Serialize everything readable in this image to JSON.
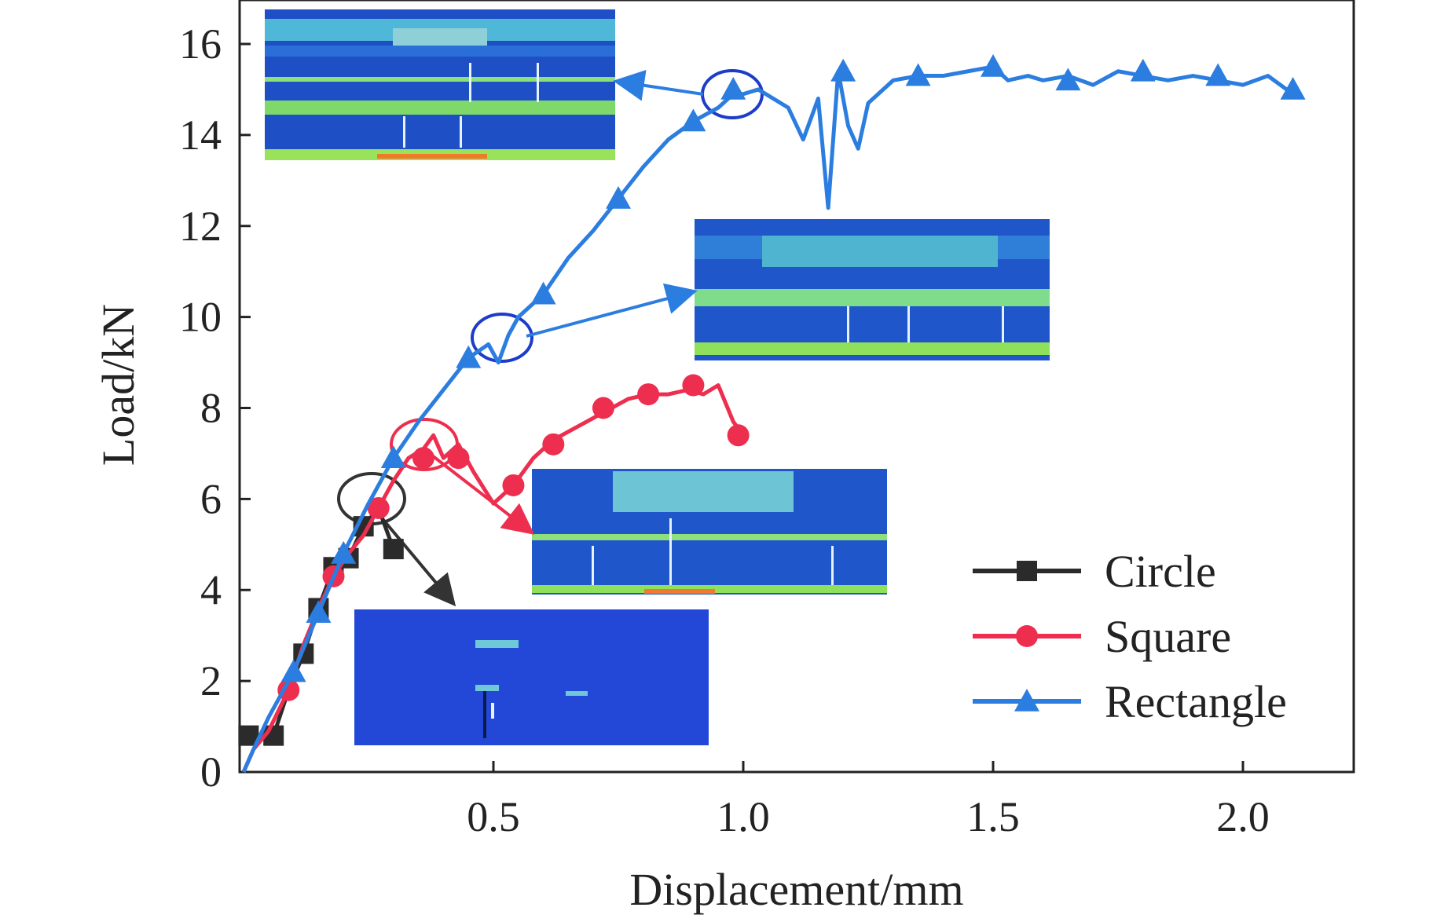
{
  "chart_data": {
    "type": "line",
    "title": "",
    "xlabel": "Displacement/mm",
    "ylabel": "Load/kN",
    "xlim": [
      0,
      2.2
    ],
    "ylim": [
      0,
      17
    ],
    "xticks": [
      0.5,
      1.0,
      1.5,
      2.0
    ],
    "xtick_labels": [
      "0.5",
      "1.0",
      "1.5",
      "2.0"
    ],
    "yticks": [
      0,
      2,
      4,
      6,
      8,
      10,
      12,
      14,
      16
    ],
    "ytick_labels": [
      "0",
      "2",
      "4",
      "6",
      "8",
      "10",
      "12",
      "14",
      "16"
    ],
    "grid": false,
    "legend_position": "bottom-right",
    "series": [
      {
        "name": "Circle",
        "color": "#2b2b2b",
        "marker": "square",
        "x": [
          0.01,
          0.03,
          0.06,
          0.09,
          0.12,
          0.15,
          0.18,
          0.21,
          0.24,
          0.27,
          0.3
        ],
        "y": [
          0.8,
          0.8,
          0.8,
          1.8,
          2.6,
          3.6,
          4.5,
          4.7,
          5.4,
          5.8,
          4.9
        ],
        "markers_x": [
          0.01,
          0.06,
          0.12,
          0.15,
          0.18,
          0.21,
          0.24,
          0.3
        ],
        "markers_y": [
          0.8,
          0.8,
          2.6,
          3.6,
          4.5,
          4.7,
          5.4,
          4.9
        ]
      },
      {
        "name": "Square",
        "color": "#ee2e4e",
        "marker": "circle",
        "x": [
          0.0,
          0.02,
          0.05,
          0.09,
          0.12,
          0.15,
          0.18,
          0.21,
          0.24,
          0.27,
          0.3,
          0.33,
          0.36,
          0.38,
          0.4,
          0.43,
          0.46,
          0.5,
          0.54,
          0.58,
          0.62,
          0.67,
          0.72,
          0.77,
          0.81,
          0.85,
          0.89,
          0.92,
          0.95,
          0.98,
          1.0
        ],
        "y": [
          0.0,
          0.5,
          0.9,
          1.8,
          2.8,
          3.6,
          4.3,
          4.8,
          5.2,
          5.8,
          6.4,
          6.9,
          7.1,
          7.4,
          6.9,
          7.2,
          6.6,
          5.9,
          6.3,
          6.9,
          7.3,
          7.6,
          7.9,
          8.2,
          8.3,
          8.3,
          8.4,
          8.3,
          8.5,
          7.7,
          7.4
        ],
        "markers_x": [
          0.09,
          0.18,
          0.27,
          0.36,
          0.43,
          0.54,
          0.62,
          0.72,
          0.81,
          0.9,
          0.99
        ],
        "markers_y": [
          1.8,
          4.3,
          5.8,
          6.9,
          6.9,
          6.3,
          7.2,
          8.0,
          8.3,
          8.5,
          7.4
        ]
      },
      {
        "name": "Rectangle",
        "color": "#2b7de0",
        "marker": "triangle",
        "x": [
          0.0,
          0.02,
          0.05,
          0.1,
          0.15,
          0.2,
          0.25,
          0.3,
          0.35,
          0.4,
          0.45,
          0.49,
          0.51,
          0.53,
          0.55,
          0.6,
          0.65,
          0.7,
          0.75,
          0.8,
          0.85,
          0.9,
          0.95,
          0.98,
          1.0,
          1.03,
          1.06,
          1.09,
          1.12,
          1.15,
          1.17,
          1.19,
          1.21,
          1.23,
          1.25,
          1.27,
          1.3,
          1.35,
          1.4,
          1.45,
          1.5,
          1.53,
          1.57,
          1.6,
          1.65,
          1.7,
          1.75,
          1.8,
          1.85,
          1.9,
          1.95,
          2.0,
          2.05,
          2.1
        ],
        "y": [
          0.0,
          0.5,
          1.2,
          2.2,
          3.5,
          4.8,
          5.9,
          6.9,
          7.7,
          8.4,
          9.1,
          9.4,
          9.0,
          9.6,
          10.0,
          10.5,
          11.3,
          11.9,
          12.6,
          13.3,
          13.9,
          14.3,
          14.6,
          14.9,
          14.9,
          15.0,
          14.8,
          14.6,
          13.9,
          14.8,
          12.4,
          15.4,
          14.2,
          13.7,
          14.7,
          14.9,
          15.2,
          15.3,
          15.3,
          15.4,
          15.5,
          15.2,
          15.3,
          15.2,
          15.3,
          15.1,
          15.4,
          15.3,
          15.2,
          15.3,
          15.2,
          15.1,
          15.3,
          14.9
        ],
        "markers_x": [
          0.1,
          0.15,
          0.2,
          0.3,
          0.45,
          0.6,
          0.75,
          0.9,
          0.98,
          1.2,
          1.35,
          1.5,
          1.65,
          1.8,
          1.95,
          2.1
        ],
        "markers_y": [
          2.2,
          3.5,
          4.8,
          6.9,
          9.1,
          10.5,
          12.6,
          14.3,
          15.0,
          15.4,
          15.3,
          15.5,
          15.2,
          15.4,
          15.3,
          15.0
        ]
      }
    ]
  }
}
